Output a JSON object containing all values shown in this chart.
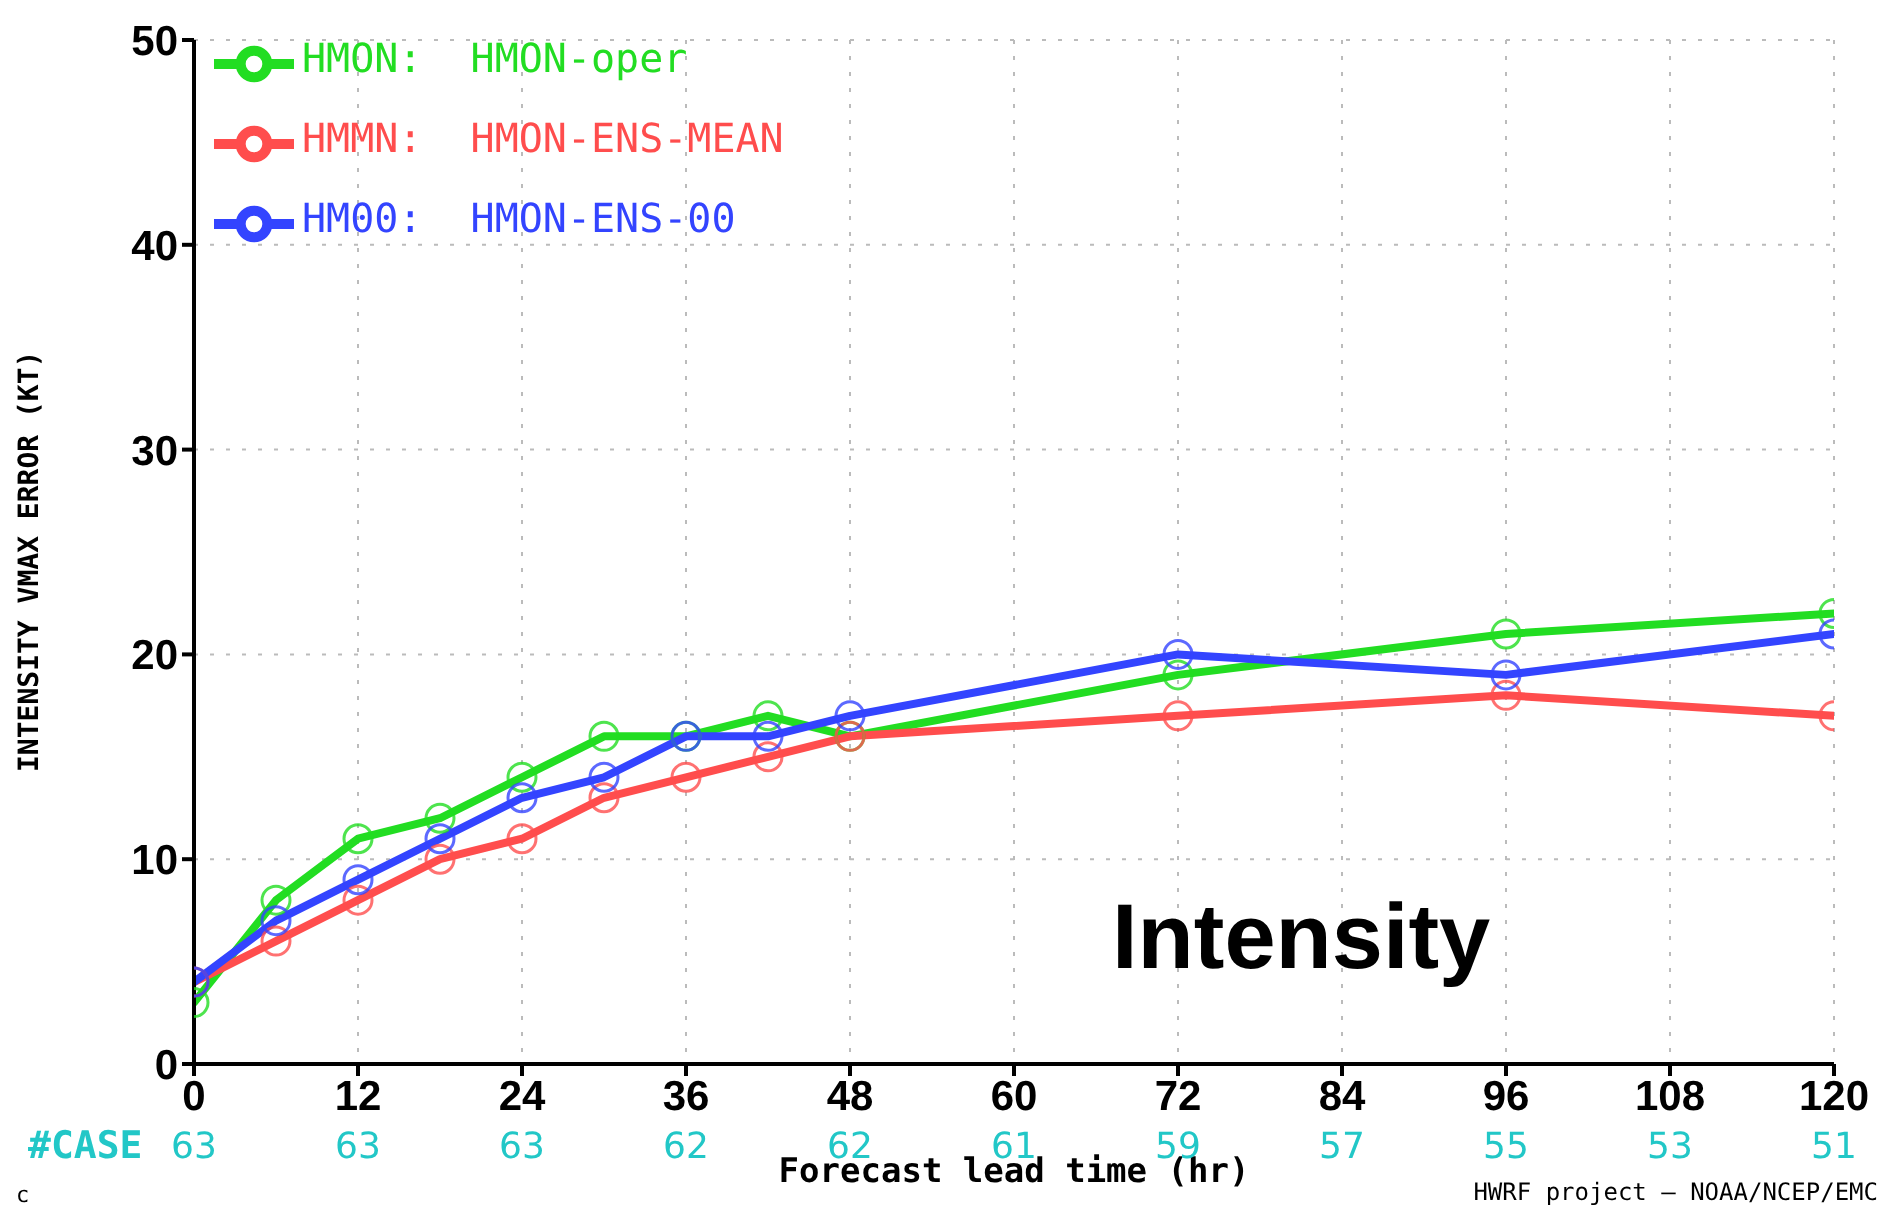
{
  "chart_data": {
    "type": "line",
    "ylabel": "INTENSITY VMAX ERROR (KT)",
    "xlabel": "Forecast lead time (hr)",
    "x": [
      0,
      6,
      12,
      18,
      24,
      30,
      36,
      42,
      48,
      72,
      96,
      120
    ],
    "series": [
      {
        "name": "HMON:  HMON-oper",
        "color": "#22dd22",
        "values": [
          3,
          8,
          11,
          12,
          14,
          16,
          16,
          17,
          16,
          19,
          21,
          22
        ]
      },
      {
        "name": "HMMN:  HMON-ENS-MEAN",
        "color": "#ff4d4d",
        "values": [
          4,
          6,
          8,
          10,
          11,
          13,
          14,
          15,
          16,
          17,
          18,
          17
        ]
      },
      {
        "name": "HM00:  HMON-ENS-00",
        "color": "#3344ff",
        "values": [
          4,
          7,
          9,
          11,
          13,
          14,
          16,
          16,
          17,
          20,
          19,
          21
        ]
      }
    ],
    "xlim": [
      0,
      120
    ],
    "xticks": [
      0,
      12,
      24,
      36,
      48,
      60,
      72,
      84,
      96,
      108,
      120
    ],
    "ylim": [
      0,
      50
    ],
    "yticks": [
      0,
      10,
      20,
      30,
      40,
      50
    ],
    "grid": true,
    "legend": "top left",
    "marker": "circle",
    "line_style": "solid",
    "annotations": [
      "Intensity",
      "#CASE",
      "c",
      "HWRF project — NOAA/NCEP/EMC",
      "63",
      "63",
      "63",
      "62",
      "62",
      "61",
      "59",
      "57",
      "55",
      "53",
      "51"
    ]
  }
}
